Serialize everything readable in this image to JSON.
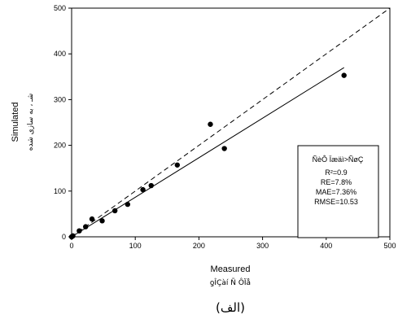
{
  "chart_data": {
    "type": "scatter",
    "xlabel": "Measured",
    "xlabel_sub": "ƍÎÇàí Ñ ÔÏå",
    "ylabel": "Simulated",
    "ylabel_sub": "شـ ، به سازی شده",
    "xlim": [
      0,
      500
    ],
    "ylim": [
      0,
      500
    ],
    "x_ticks": [
      0,
      100,
      200,
      300,
      400,
      500
    ],
    "y_ticks": [
      0,
      100,
      200,
      300,
      400,
      500
    ],
    "grid": false,
    "points": [
      {
        "x": 0,
        "y": 0
      },
      {
        "x": 2,
        "y": 2
      },
      {
        "x": 12,
        "y": 13
      },
      {
        "x": 22,
        "y": 22
      },
      {
        "x": 32,
        "y": 39
      },
      {
        "x": 48,
        "y": 35
      },
      {
        "x": 68,
        "y": 57
      },
      {
        "x": 88,
        "y": 71
      },
      {
        "x": 112,
        "y": 103
      },
      {
        "x": 125,
        "y": 112
      },
      {
        "x": 166,
        "y": 157
      },
      {
        "x": 218,
        "y": 246
      },
      {
        "x": 240,
        "y": 193
      },
      {
        "x": 428,
        "y": 353
      }
    ],
    "reference_line": {
      "style": "dashed",
      "from": [
        0,
        0
      ],
      "to": [
        500,
        500
      ]
    },
    "fit_line": {
      "style": "solid",
      "from": [
        0,
        0
      ],
      "to": [
        428,
        370
      ]
    },
    "stats_box": {
      "title": "ÑèÔ Ïæäì>ÑøÇ",
      "r2": "R²=0.9",
      "re": "RE=7.8%",
      "mae": "MAE=7.36%",
      "rmse": "RMSE=10.53"
    },
    "caption": "(الف)"
  }
}
